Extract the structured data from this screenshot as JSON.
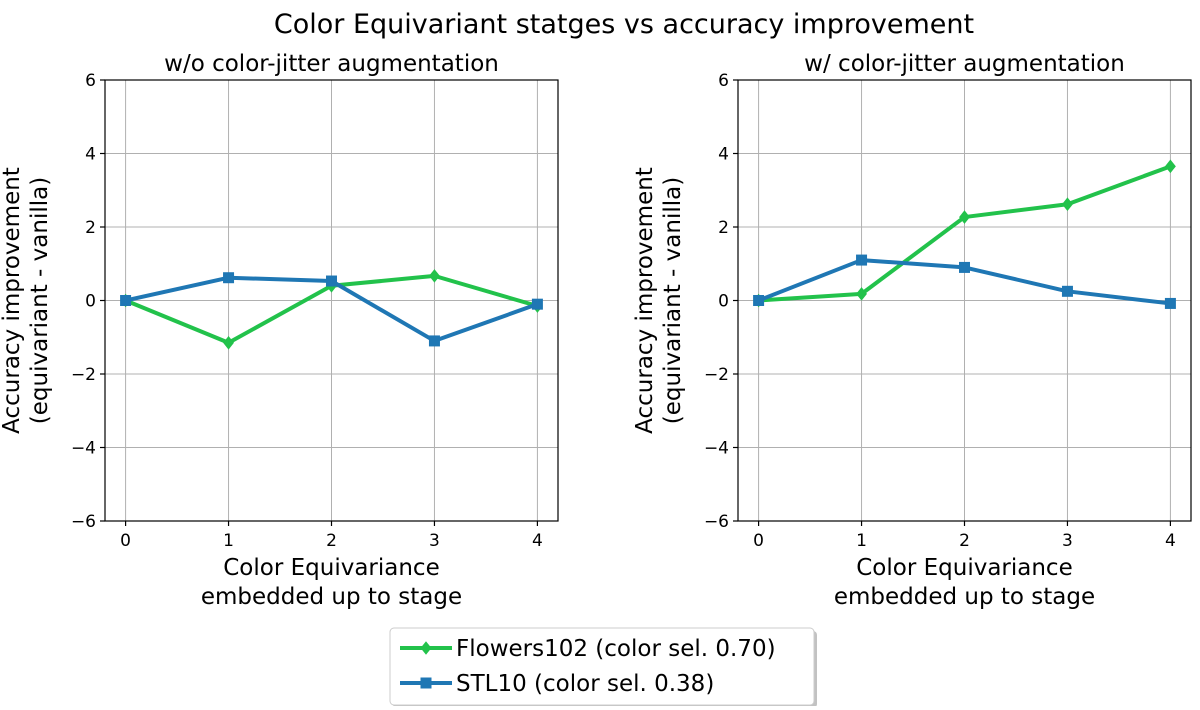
{
  "figure": {
    "suptitle": "Color Equivariant statges vs accuracy improvement"
  },
  "legend": {
    "placement": "bottom-center",
    "entries": [
      {
        "label": "Flowers102 (color sel. 0.70)",
        "series_index": 0
      },
      {
        "label": "STL10 (color sel. 0.38)",
        "series_index": 1
      }
    ]
  },
  "chart_data": [
    {
      "type": "line",
      "title": "w/o color-jitter augmentation",
      "xlabel": [
        "Color Equivariance",
        "embedded up to stage"
      ],
      "ylabel": [
        "Accuracy improvement",
        "(equivariant - vanilla)"
      ],
      "x": [
        0,
        1,
        2,
        3,
        4
      ],
      "xticks": [
        0,
        1,
        2,
        3,
        4
      ],
      "yticks": [
        -6,
        -4,
        -2,
        0,
        2,
        4,
        6
      ],
      "xlim": [
        -0.2,
        4.2
      ],
      "ylim": [
        -6,
        6
      ],
      "grid": true,
      "series": [
        {
          "name": "Flowers102 (color sel. 0.70)",
          "color": "#22c24b",
          "marker": "diamond",
          "values": [
            0.0,
            -1.15,
            0.4,
            0.67,
            -0.15
          ]
        },
        {
          "name": "STL10 (color sel. 0.38)",
          "color": "#1f77b4",
          "marker": "square",
          "values": [
            0.0,
            0.62,
            0.53,
            -1.1,
            -0.1
          ]
        }
      ]
    },
    {
      "type": "line",
      "title": "w/ color-jitter augmentation",
      "xlabel": [
        "Color Equivariance",
        "embedded up to stage"
      ],
      "ylabel": [
        "Accuracy improvement",
        "(equivariant - vanilla)"
      ],
      "x": [
        0,
        1,
        2,
        3,
        4
      ],
      "xticks": [
        0,
        1,
        2,
        3,
        4
      ],
      "yticks": [
        -6,
        -4,
        -2,
        0,
        2,
        4,
        6
      ],
      "xlim": [
        -0.2,
        4.2
      ],
      "ylim": [
        -6,
        6
      ],
      "grid": true,
      "series": [
        {
          "name": "Flowers102 (color sel. 0.70)",
          "color": "#22c24b",
          "marker": "diamond",
          "values": [
            0.0,
            0.18,
            2.27,
            2.62,
            3.65
          ]
        },
        {
          "name": "STL10 (color sel. 0.38)",
          "color": "#1f77b4",
          "marker": "square",
          "values": [
            0.0,
            1.1,
            0.9,
            0.25,
            -0.08
          ]
        }
      ]
    }
  ]
}
